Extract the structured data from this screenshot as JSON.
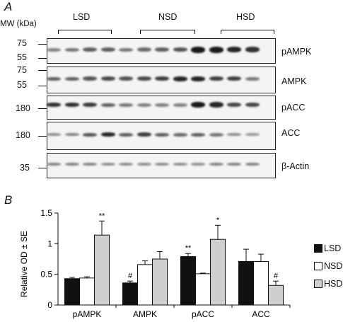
{
  "panel_a": {
    "letter": "A",
    "mw_label": "MW (kDa)",
    "groups": [
      "LSD",
      "NSD",
      "HSD"
    ],
    "blots": [
      {
        "name": "pAMPK",
        "mw": [
          "75",
          "55"
        ]
      },
      {
        "name": "AMPK",
        "mw": [
          "75",
          "55"
        ]
      },
      {
        "name": "pACC",
        "mw": [
          "180"
        ]
      },
      {
        "name": "ACC",
        "mw": [
          "180"
        ]
      },
      {
        "name": "β-Actin",
        "mw": [
          "35"
        ]
      }
    ]
  },
  "panel_b": {
    "letter": "B"
  },
  "colors": {
    "LSD": "#111111",
    "NSD": "#ffffff",
    "HSD": "#cfcfcf"
  },
  "chart_data": {
    "type": "bar",
    "categories": [
      "pAMPK",
      "AMPK",
      "pACC",
      "ACC"
    ],
    "ylabel": "Relative OD ± SE",
    "ylim": [
      0,
      1.5
    ],
    "yticks": [
      "0",
      "0.5",
      "1",
      "1.5"
    ],
    "legend_position": "right",
    "series": [
      {
        "name": "LSD",
        "values": [
          0.43,
          0.36,
          0.79,
          0.71
        ],
        "errors": [
          0.02,
          0.03,
          0.05,
          0.2
        ],
        "marks": [
          "",
          "#",
          "**",
          ""
        ]
      },
      {
        "name": "NSD",
        "values": [
          0.44,
          0.66,
          0.51,
          0.71
        ],
        "errors": [
          0.02,
          0.06,
          0.01,
          0.12
        ],
        "marks": [
          "",
          "",
          "",
          ""
        ]
      },
      {
        "name": "HSD",
        "values": [
          1.14,
          0.75,
          1.07,
          0.32
        ],
        "errors": [
          0.23,
          0.12,
          0.23,
          0.07
        ],
        "marks": [
          "**",
          "",
          "*",
          "#"
        ]
      }
    ]
  }
}
